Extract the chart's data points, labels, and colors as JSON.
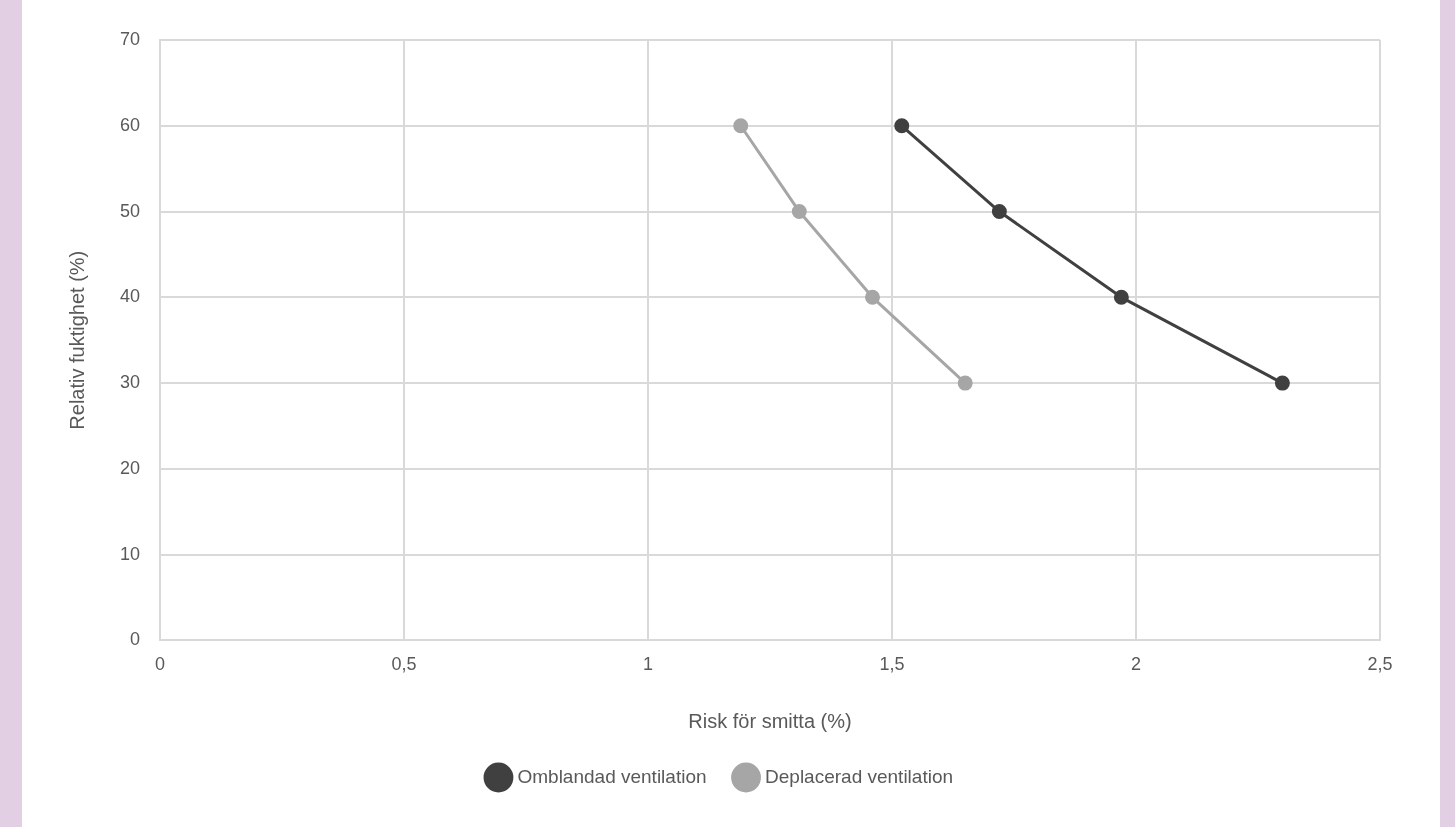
{
  "chart_data": {
    "type": "line",
    "xlabel": "Risk för smitta (%)",
    "ylabel": "Relativ fuktighet (%)",
    "xlim": [
      0,
      2.5
    ],
    "xticks": [
      0,
      {
        "value": 0.5,
        "label": "0,5"
      },
      1,
      {
        "value": 1.5,
        "label": "1,5"
      },
      2,
      {
        "value": 2.5,
        "label": "2,5"
      }
    ],
    "ylim": [
      0,
      70
    ],
    "yticks": [
      0,
      10,
      20,
      30,
      40,
      50,
      60,
      70
    ],
    "series": [
      {
        "name": "Omblandad ventilation",
        "color": "#404040",
        "x": [
          1.52,
          1.72,
          1.97,
          2.3
        ],
        "values": [
          60,
          50,
          40,
          30
        ]
      },
      {
        "name": "Deplacerad ventilation",
        "color": "#a6a6a6",
        "x": [
          1.19,
          1.31,
          1.46,
          1.65
        ],
        "values": [
          60,
          50,
          40,
          30
        ]
      }
    ],
    "grid": true,
    "legend": "bottom",
    "marker": "circle",
    "line_style": "solid"
  }
}
